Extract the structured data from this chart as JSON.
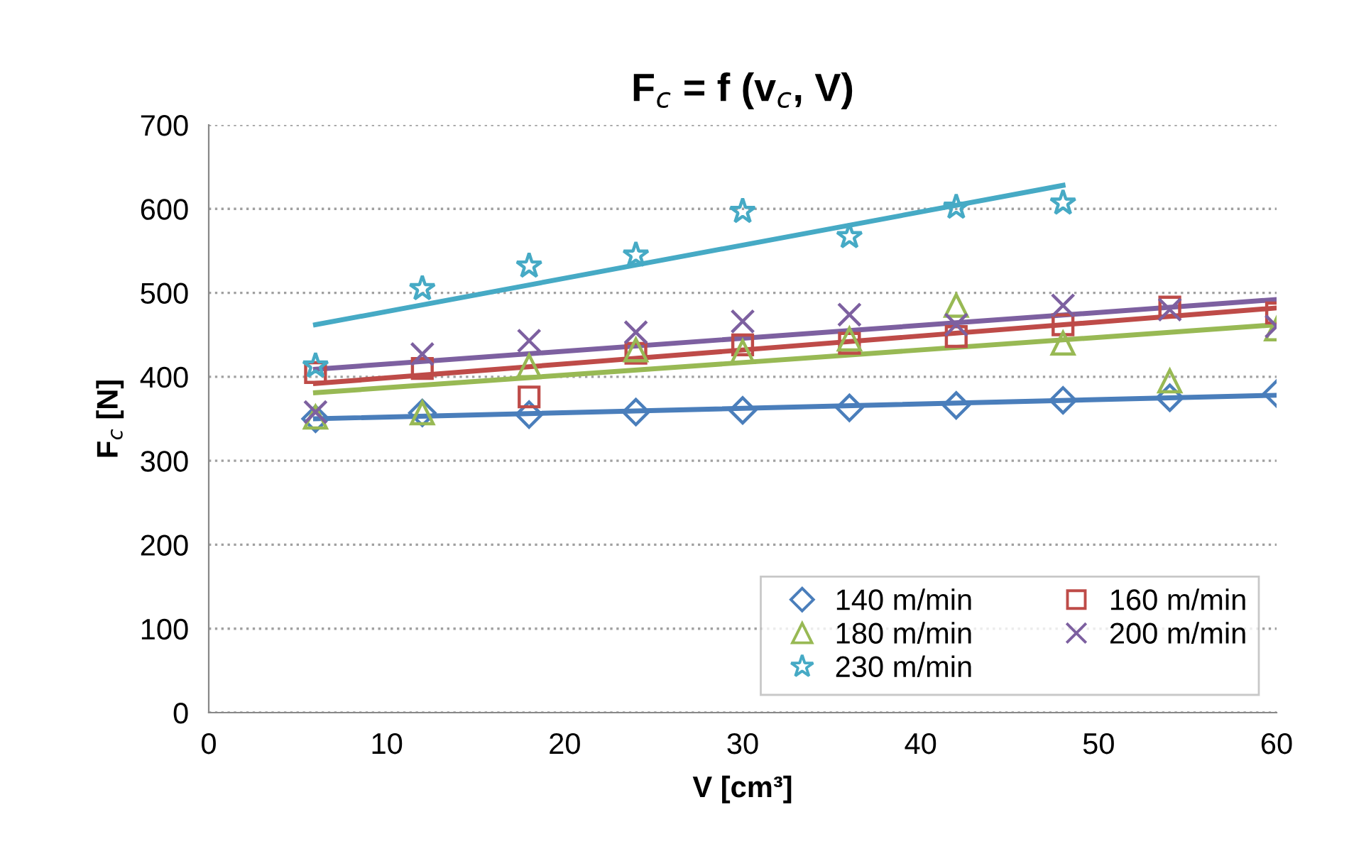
{
  "chart_data": {
    "type": "scatter",
    "title": "F$_{c}$ = f (v$_{c}$, V)",
    "xlabel": "V [cm³]",
    "ylabel": "F$_{c}$ [N]",
    "xlim": [
      0,
      60
    ],
    "xticks": [
      0,
      10,
      20,
      30,
      40,
      50,
      60
    ],
    "ylim": [
      0,
      700
    ],
    "yticks": [
      0,
      100,
      200,
      300,
      400,
      500,
      600,
      700
    ],
    "grid": "y",
    "legend": "bottom right",
    "series": [
      {
        "name": "140 m/min",
        "color": "#4a7ebb",
        "marker": "diamond",
        "x": [
          6,
          12,
          18,
          24,
          30,
          36,
          42,
          48,
          54,
          60
        ],
        "values": [
          350,
          357,
          355,
          358,
          360,
          363,
          366,
          372,
          375,
          380
        ]
      },
      {
        "name": "160 m/min",
        "color": "#be4b48",
        "marker": "square",
        "x": [
          6,
          12,
          18,
          24,
          30,
          36,
          42,
          48,
          54,
          60
        ],
        "values": [
          405,
          410,
          376,
          428,
          438,
          440,
          448,
          462,
          483,
          476
        ]
      },
      {
        "name": "180 m/min",
        "color": "#98b954",
        "marker": "triangle",
        "x": [
          6,
          12,
          18,
          24,
          30,
          36,
          42,
          48,
          54,
          60
        ],
        "values": [
          352,
          357,
          413,
          432,
          430,
          445,
          485,
          440,
          395,
          457
        ]
      },
      {
        "name": "200 m/min",
        "color": "#7d60a0",
        "marker": "cross",
        "x": [
          6,
          12,
          18,
          24,
          30,
          36,
          42,
          48,
          54,
          60
        ],
        "values": [
          358,
          427,
          443,
          453,
          466,
          474,
          462,
          485,
          480,
          460
        ]
      },
      {
        "name": "230 m/min",
        "color": "#46aac5",
        "marker": "star",
        "x": [
          6,
          12,
          18,
          24,
          30,
          36,
          42,
          48
        ],
        "values": [
          413,
          505,
          532,
          545,
          597,
          567,
          602,
          607
        ]
      },
      {
        "type": "line",
        "color": "#4a7ebb",
        "x": [
          6,
          60
        ],
        "values": [
          350,
          378
        ]
      },
      {
        "type": "line",
        "color": "#be4b48",
        "x": [
          6,
          60
        ],
        "values": [
          392,
          482
        ]
      },
      {
        "type": "line",
        "color": "#98b954",
        "x": [
          6,
          60
        ],
        "values": [
          381,
          462
        ]
      },
      {
        "type": "line",
        "color": "#7d60a0",
        "x": [
          6,
          60
        ],
        "values": [
          409,
          492
        ]
      },
      {
        "type": "line",
        "color": "#46aac5",
        "x": [
          6,
          48
        ],
        "values": [
          462,
          628
        ]
      }
    ]
  }
}
